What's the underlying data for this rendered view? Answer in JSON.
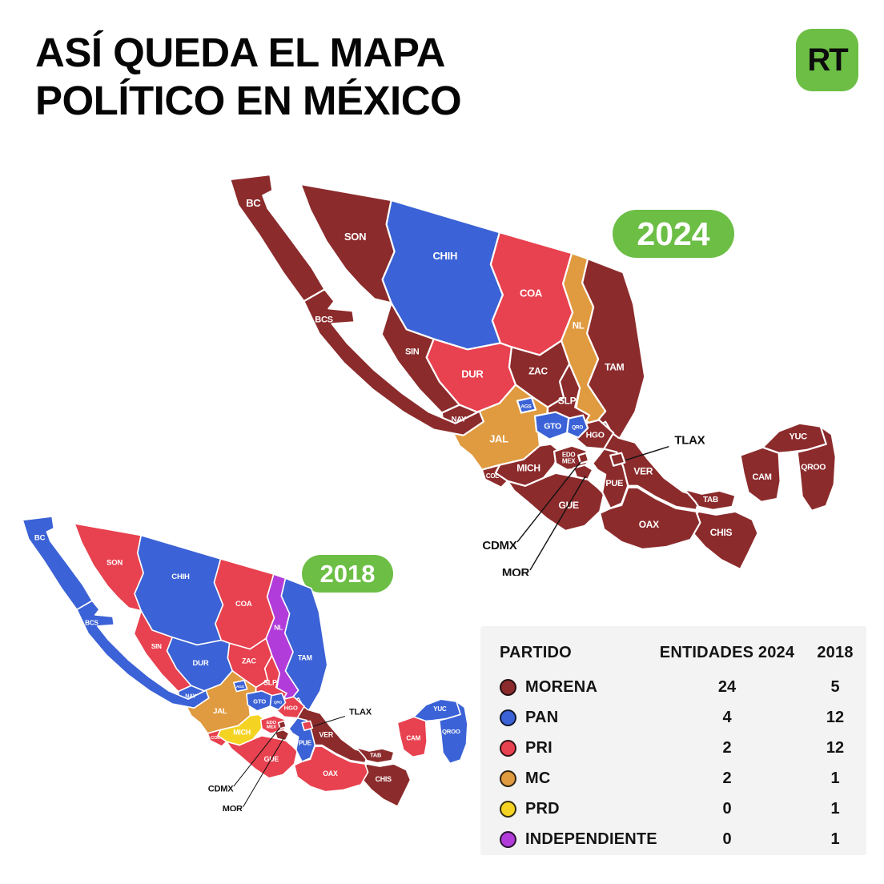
{
  "title": {
    "line1": "ASÍ QUEDA EL MAPA",
    "line2": "POLÍTICO EN MÉXICO"
  },
  "logo": {
    "text": "RT",
    "bg_color": "#6CBE45"
  },
  "badges": {
    "y2024": "2024",
    "y2018": "2018",
    "bg_color": "#6CBE45"
  },
  "parties": {
    "morena": {
      "name": "MORENA",
      "color": "#8C2B2C"
    },
    "pan": {
      "name": "PAN",
      "color": "#3B62D6"
    },
    "pri": {
      "name": "PRI",
      "color": "#E8414F"
    },
    "mc": {
      "name": "MC",
      "color": "#E09A3F"
    },
    "prd": {
      "name": "PRD",
      "color": "#F5D322"
    },
    "ind": {
      "name": "INDEPENDIENTE",
      "color": "#B13CDA"
    }
  },
  "table": {
    "headers": [
      "PARTIDO",
      "ENTIDADES 2024",
      "2018"
    ],
    "rows": [
      {
        "party": "morena",
        "y2024": "24",
        "y2018": "5"
      },
      {
        "party": "pan",
        "y2024": "4",
        "y2018": "12"
      },
      {
        "party": "pri",
        "y2024": "2",
        "y2018": "12"
      },
      {
        "party": "mc",
        "y2024": "2",
        "y2018": "1"
      },
      {
        "party": "prd",
        "y2024": "0",
        "y2018": "1"
      },
      {
        "party": "ind",
        "y2024": "0",
        "y2018": "1"
      }
    ]
  },
  "map": {
    "callouts": [
      "TLAX",
      "CDMX",
      "MOR"
    ],
    "states": [
      {
        "id": "BC",
        "label": "BC",
        "party_2024": "morena",
        "party_2018": "pan"
      },
      {
        "id": "BCS",
        "label": "BCS",
        "party_2024": "morena",
        "party_2018": "pan"
      },
      {
        "id": "SON",
        "label": "SON",
        "party_2024": "morena",
        "party_2018": "pri"
      },
      {
        "id": "CHIH",
        "label": "CHIH",
        "party_2024": "pan",
        "party_2018": "pan"
      },
      {
        "id": "COA",
        "label": "COA",
        "party_2024": "pri",
        "party_2018": "pri"
      },
      {
        "id": "NL",
        "label": "NL",
        "party_2024": "mc",
        "party_2018": "ind"
      },
      {
        "id": "TAM",
        "label": "TAM",
        "party_2024": "morena",
        "party_2018": "pan"
      },
      {
        "id": "SIN",
        "label": "SIN",
        "party_2024": "morena",
        "party_2018": "pri"
      },
      {
        "id": "DUR",
        "label": "DUR",
        "party_2024": "pri",
        "party_2018": "pan"
      },
      {
        "id": "ZAC",
        "label": "ZAC",
        "party_2024": "morena",
        "party_2018": "pri"
      },
      {
        "id": "SLP",
        "label": "SLP",
        "party_2024": "morena",
        "party_2018": "pri"
      },
      {
        "id": "NAY",
        "label": "NAY",
        "party_2024": "morena",
        "party_2018": "pan"
      },
      {
        "id": "AGS",
        "label": "AGS",
        "party_2024": "pan",
        "party_2018": "pan"
      },
      {
        "id": "JAL",
        "label": "JAL",
        "party_2024": "mc",
        "party_2018": "mc"
      },
      {
        "id": "GTO",
        "label": "GTO",
        "party_2024": "pan",
        "party_2018": "pan"
      },
      {
        "id": "QRO",
        "label": "QRO",
        "party_2024": "pan",
        "party_2018": "pan"
      },
      {
        "id": "HGO",
        "label": "HGO",
        "party_2024": "morena",
        "party_2018": "pri"
      },
      {
        "id": "COL",
        "label": "COL",
        "party_2024": "morena",
        "party_2018": "pri"
      },
      {
        "id": "MICH",
        "label": "MICH",
        "party_2024": "morena",
        "party_2018": "prd"
      },
      {
        "id": "EDOMEX",
        "label": "EDO MEX",
        "party_2024": "morena",
        "party_2018": "pri"
      },
      {
        "id": "CDMX",
        "label": "CDMX",
        "party_2024": "morena",
        "party_2018": "morena"
      },
      {
        "id": "MOR",
        "label": "MOR",
        "party_2024": "morena",
        "party_2018": "morena"
      },
      {
        "id": "TLAX",
        "label": "TLAX",
        "party_2024": "morena",
        "party_2018": "pri"
      },
      {
        "id": "PUE",
        "label": "PUE",
        "party_2024": "morena",
        "party_2018": "pan"
      },
      {
        "id": "VER",
        "label": "VER",
        "party_2024": "morena",
        "party_2018": "morena"
      },
      {
        "id": "GUE",
        "label": "GUE",
        "party_2024": "morena",
        "party_2018": "pri"
      },
      {
        "id": "OAX",
        "label": "OAX",
        "party_2024": "morena",
        "party_2018": "pri"
      },
      {
        "id": "TAB",
        "label": "TAB",
        "party_2024": "morena",
        "party_2018": "morena"
      },
      {
        "id": "CHIS",
        "label": "CHIS",
        "party_2024": "morena",
        "party_2018": "morena"
      },
      {
        "id": "CAM",
        "label": "CAM",
        "party_2024": "morena",
        "party_2018": "pri"
      },
      {
        "id": "YUC",
        "label": "YUC",
        "party_2024": "morena",
        "party_2018": "pan"
      },
      {
        "id": "QROO",
        "label": "QROO",
        "party_2024": "morena",
        "party_2018": "pan"
      }
    ]
  },
  "chart_data": {
    "type": "table",
    "title": "ASÍ QUEDA EL MAPA POLÍTICO EN MÉXICO",
    "columns": [
      "PARTIDO",
      "ENTIDADES 2024",
      "2018"
    ],
    "rows": [
      [
        "MORENA",
        24,
        5
      ],
      [
        "PAN",
        4,
        12
      ],
      [
        "PRI",
        2,
        12
      ],
      [
        "MC",
        2,
        1
      ],
      [
        "PRD",
        0,
        1
      ],
      [
        "INDEPENDIENTE",
        0,
        1
      ]
    ]
  }
}
